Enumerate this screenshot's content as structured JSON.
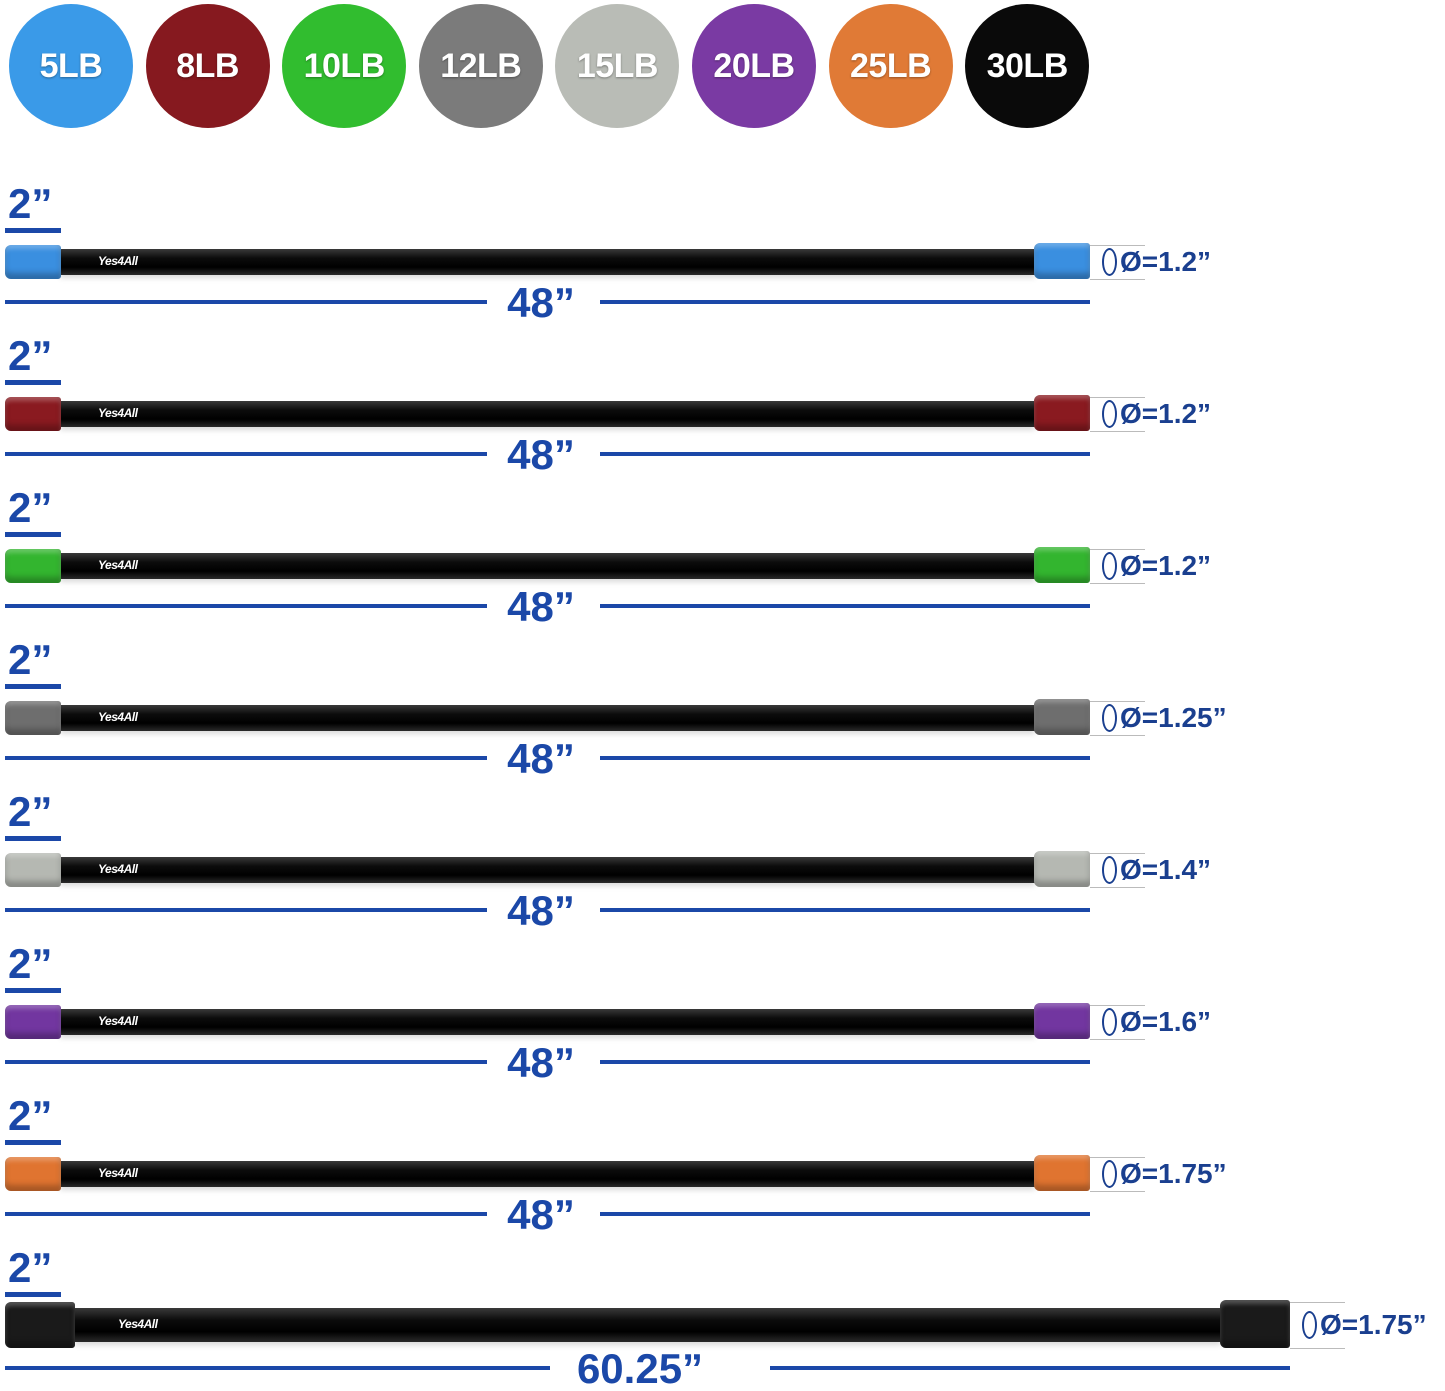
{
  "weights": [
    {
      "label": "5LB",
      "color": "#3a9ae8"
    },
    {
      "label": "8LB",
      "color": "#86191f"
    },
    {
      "label": "10LB",
      "color": "#31bd2f"
    },
    {
      "label": "12LB",
      "color": "#7b7b7b"
    },
    {
      "label": "15LB",
      "color": "#b9bcb6"
    },
    {
      "label": "20LB",
      "color": "#7a3aa3"
    },
    {
      "label": "25LB",
      "color": "#e07a36"
    },
    {
      "label": "30LB",
      "color": "#0a0a0a"
    }
  ],
  "brand": "Yes4All",
  "bars": [
    {
      "cap_color": "#3a8fe0",
      "end_label": "2”",
      "length": "48”",
      "diameter": "Ø=1.2”"
    },
    {
      "cap_color": "#8a1a20",
      "end_label": "2”",
      "length": "48”",
      "diameter": "Ø=1.2”"
    },
    {
      "cap_color": "#33b52f",
      "end_label": "2”",
      "length": "48”",
      "diameter": "Ø=1.2”"
    },
    {
      "cap_color": "#6e6e6e",
      "end_label": "2”",
      "length": "48”",
      "diameter": "Ø=1.25”"
    },
    {
      "cap_color": "#b5b8b2",
      "end_label": "2”",
      "length": "48”",
      "diameter": "Ø=1.4”"
    },
    {
      "cap_color": "#7236a0",
      "end_label": "2”",
      "length": "48”",
      "diameter": "Ø=1.6”"
    },
    {
      "cap_color": "#e07430",
      "end_label": "2”",
      "length": "48”",
      "diameter": "Ø=1.75”"
    },
    {
      "cap_color": "#1a1a1a",
      "end_label": "2”",
      "length": "60.25”",
      "diameter": "Ø=1.75”"
    }
  ]
}
